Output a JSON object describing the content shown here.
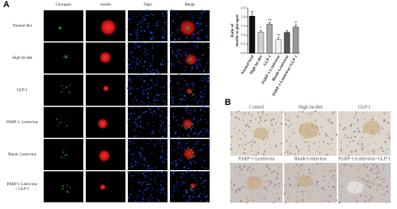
{
  "panel_a": {
    "label": "A",
    "columns": [
      "Glucagon",
      "insulin",
      "Dapi",
      "Merge"
    ],
    "rows": [
      "Normal diet",
      "High fat diet",
      "GLP-1",
      "PARP-1- Lentivirus",
      "Blank- Lentivirus",
      "PARP-1-Lentivirus + GLP-1"
    ]
  },
  "chart_data": {
    "type": "bar",
    "ylabel_lines": [
      "Ratio of",
      "insulin to glucagon"
    ],
    "categories": [
      "Normal food",
      "High fat diet",
      "GLP-1",
      "PARP-1-Lentivirus",
      "Blank-Lentivirus",
      "PARP-1-Lentivirus+GLP-1"
    ],
    "values": [
      2.05,
      1.15,
      1.6,
      0.75,
      1.15,
      1.45
    ],
    "errors": [
      0.25,
      0.1,
      0.1,
      0.1,
      0.1,
      0.1
    ],
    "colors": [
      "#111111",
      "#d0d0d0",
      "#a8a8a8",
      "#f2f2f2",
      "#555555",
      "#9a9a9a"
    ],
    "significance": [
      {
        "bar": "High fat diet",
        "label": "*"
      },
      {
        "bar": "GLP-1",
        "label": "*#"
      },
      {
        "bar": "PARP-1-Lentivirus",
        "label": "*#"
      },
      {
        "bar": "PARP-1-Lentivirus+GLP-1",
        "label": "#"
      }
    ],
    "ylim": [
      0,
      2.5
    ],
    "yticks": [
      {
        "value": 0,
        "label": "0.0"
      },
      {
        "value": 0.5,
        "label": "0.5"
      },
      {
        "value": 1,
        "label": "1.0"
      },
      {
        "value": 1.5,
        "label": "1.5"
      },
      {
        "value": 2,
        "label": "2.0"
      },
      {
        "value": 2.5,
        "label": "2.5"
      }
    ]
  },
  "panel_b": {
    "label": "B",
    "images": [
      "Control",
      "High fat diet",
      "GLP-1",
      "PARP-1-Lentivirus",
      "Blank-Lentivirus",
      "PARP-1-Lentivirus+GLP-1"
    ]
  }
}
